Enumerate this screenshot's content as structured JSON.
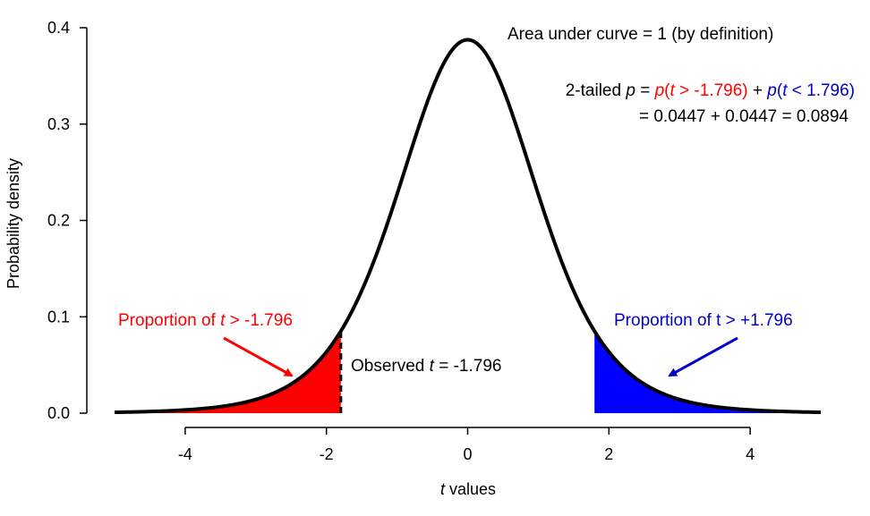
{
  "chart_data": {
    "type": "area",
    "xlabel_italic": "t",
    "xlabel_rest": " values",
    "ylabel": "Probability density",
    "xlim": [
      -5,
      5
    ],
    "ylim": [
      0,
      0.4
    ],
    "x_ticks": [
      "-4",
      "-2",
      "0",
      "2",
      "4"
    ],
    "x_tick_values": [
      -4,
      -2,
      0,
      2,
      4
    ],
    "y_ticks": [
      "0.0",
      "0.1",
      "0.2",
      "0.3",
      "0.4"
    ],
    "y_tick_values": [
      0,
      0.1,
      0.2,
      0.3,
      0.4
    ],
    "curve": {
      "distribution": "t",
      "x": [
        -5,
        -4.5,
        -4,
        -3.5,
        -3,
        -2.5,
        -2,
        -1.796,
        -1.5,
        -1,
        -0.5,
        0,
        0.5,
        1,
        1.5,
        1.796,
        2,
        2.5,
        3,
        3.5,
        4,
        4.5,
        5
      ],
      "y": [
        0.0018,
        0.003,
        0.0052,
        0.0091,
        0.0167,
        0.031,
        0.0581,
        0.0796,
        0.126,
        0.2362,
        0.3442,
        0.3929,
        0.3442,
        0.2362,
        0.126,
        0.0796,
        0.0581,
        0.031,
        0.0167,
        0.0091,
        0.0052,
        0.003,
        0.0018
      ],
      "color": "#000000"
    },
    "shaded_regions": [
      {
        "from": -5,
        "to": -1.796,
        "color": "#ff0000"
      },
      {
        "from": 1.796,
        "to": 5,
        "color": "#0000ff"
      }
    ],
    "observed_t": -1.796,
    "annotations": {
      "area": "Area under curve = 1 (by definition)",
      "ptail_prefix": "2-tailed ",
      "ptail_p": "p",
      "ptail_eq": " = ",
      "ptail_red_p": "p",
      "ptail_red_paren": "(",
      "ptail_red_t": "t",
      "ptail_red_rest": " > -1.796)",
      "ptail_plus": " + ",
      "ptail_blue_p": "p",
      "ptail_blue_paren": "(",
      "ptail_blue_t": "t",
      "ptail_blue_rest": " < 1.796)",
      "ptail_line2": "= 0.0447 + 0.0447 = 0.0894",
      "left_prefix": "Proportion of ",
      "left_t": "t",
      "left_rest": " > -1.796",
      "right_label": "Proportion of t > +1.796",
      "observed_prefix": "Observed ",
      "observed_t": "t",
      "observed_rest": " = -1.796"
    },
    "colors": {
      "red": "#ff0000",
      "blue": "#0000cc",
      "blue_fill": "#0000ff"
    }
  }
}
